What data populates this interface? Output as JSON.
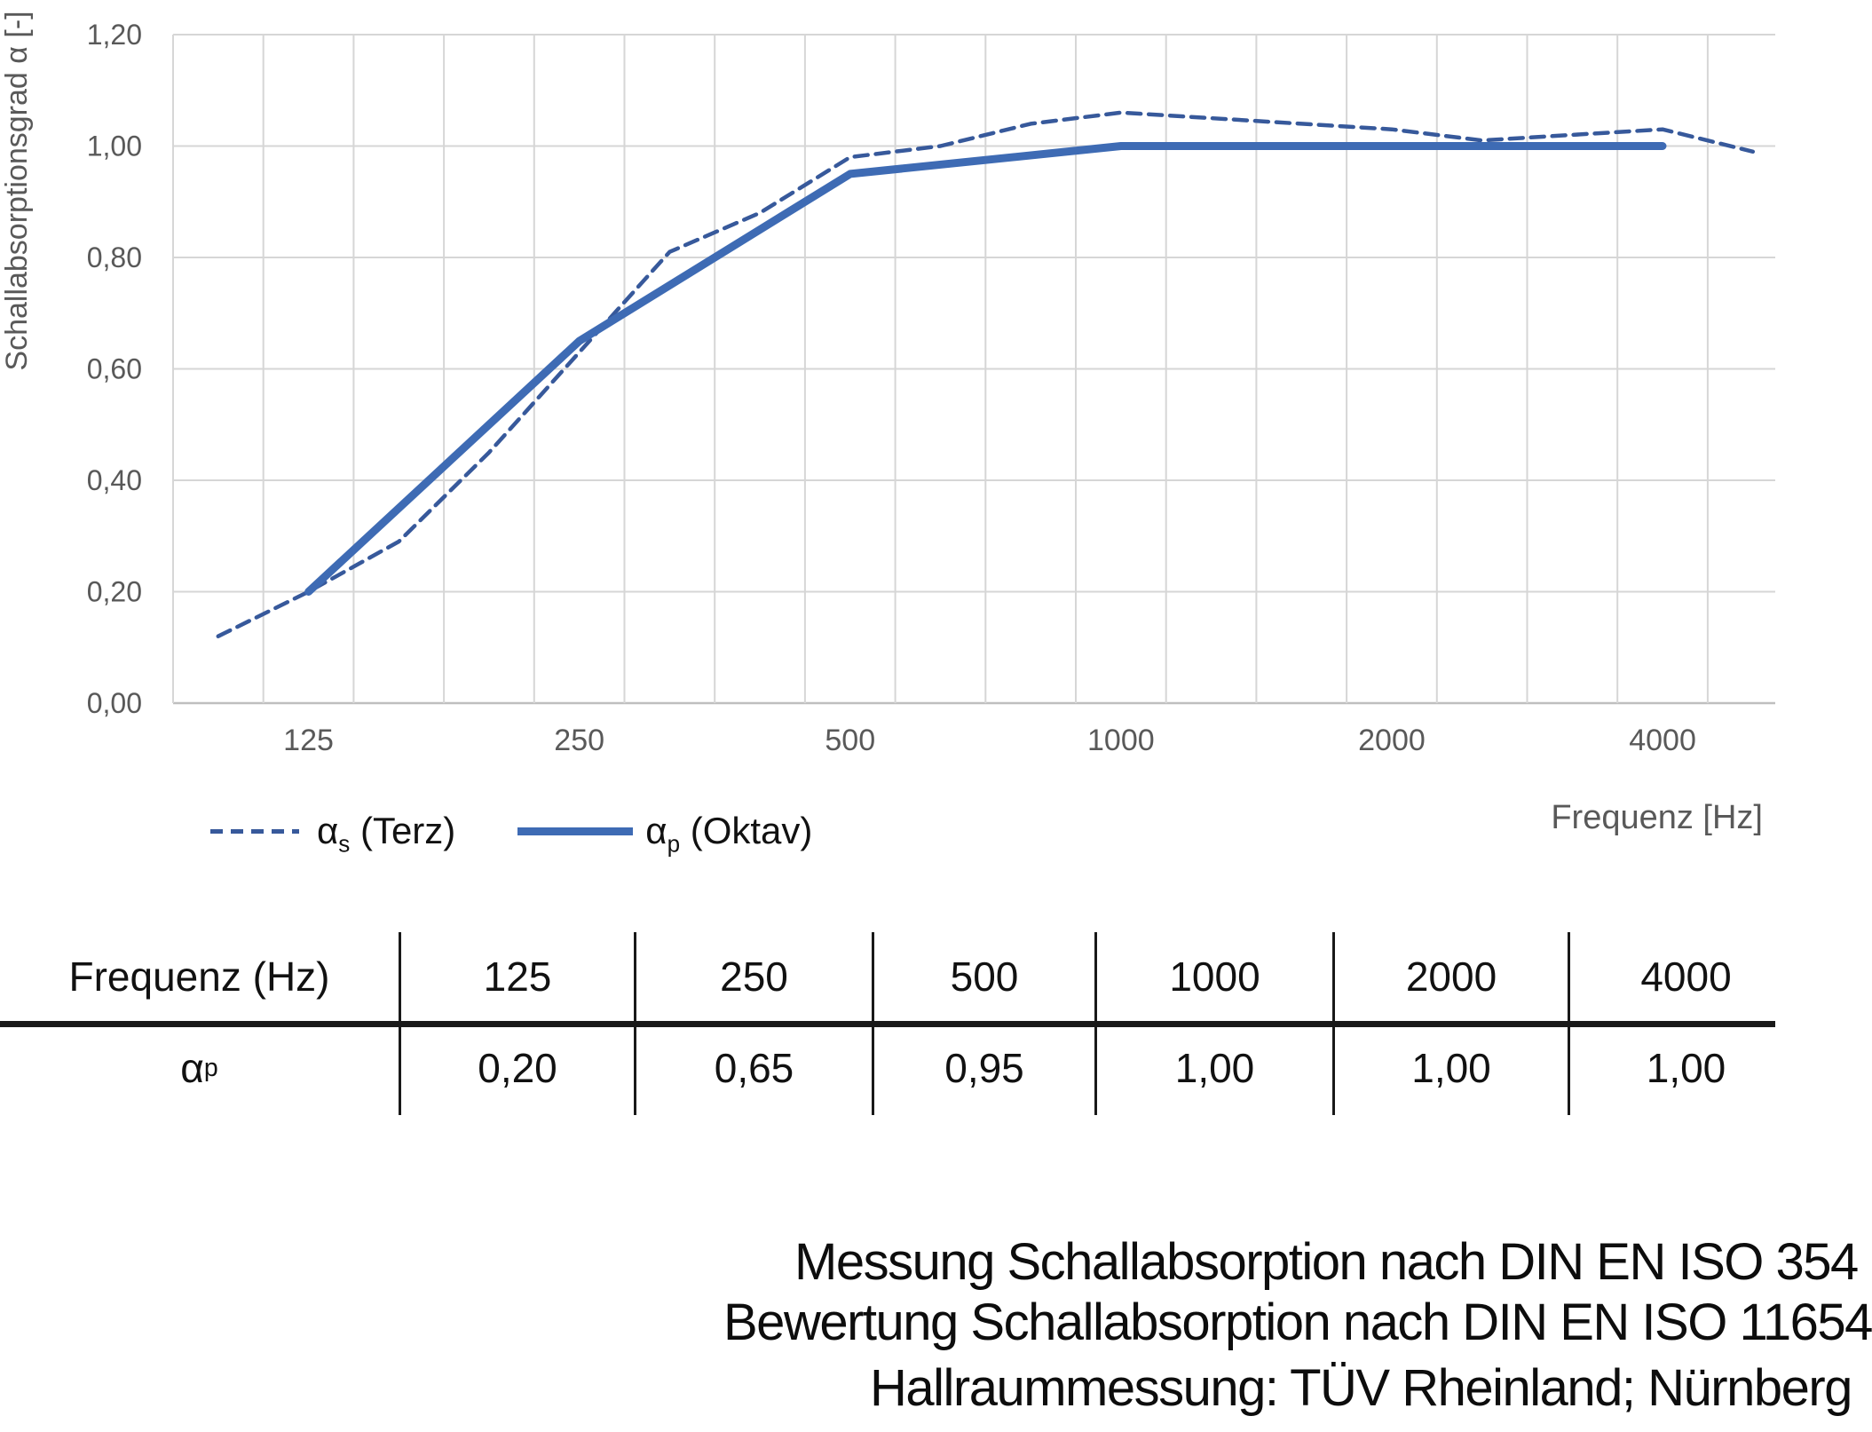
{
  "chart": {
    "y_axis": {
      "title": "Schallabsorptionsgrad α [-]",
      "tick_labels": [
        "1,20",
        "1,00",
        "0,80",
        "0,60",
        "0,40",
        "0,20",
        "0,00"
      ],
      "tick_values": [
        1.2,
        1.0,
        0.8,
        0.6,
        0.4,
        0.2,
        0.0
      ]
    },
    "x_axis": {
      "title": "Frequenz [Hz]",
      "tick_labels": [
        "125",
        "250",
        "500",
        "1000",
        "2000",
        "4000"
      ],
      "tick_freqs": [
        125,
        250,
        500,
        1000,
        2000,
        4000
      ]
    },
    "legend": [
      {
        "symbol": "α",
        "sub": "s",
        "rest": " (Terz)"
      },
      {
        "symbol": "α",
        "sub": "p",
        "rest": " (Oktav)"
      }
    ]
  },
  "chart_data": {
    "type": "line",
    "x_scale": "third-octave-bands",
    "categories": [
      100,
      125,
      160,
      200,
      250,
      315,
      400,
      500,
      630,
      800,
      1000,
      1250,
      1600,
      2000,
      2500,
      3150,
      4000,
      5000
    ],
    "ylim": [
      0,
      1.2
    ],
    "grid": true,
    "legend_position": "bottom-left",
    "xlabel": "Frequenz [Hz]",
    "ylabel": "Schallabsorptionsgrad α [-]",
    "title": "",
    "series": [
      {
        "name": "αs (Terz)",
        "style": "dashed",
        "color": "#37599B",
        "x": [
          100,
          125,
          160,
          200,
          250,
          315,
          400,
          500,
          630,
          800,
          1000,
          1250,
          1600,
          2000,
          2500,
          3150,
          4000,
          5000
        ],
        "values": [
          0.12,
          0.2,
          0.29,
          0.45,
          0.63,
          0.81,
          0.88,
          0.98,
          1.0,
          1.04,
          1.06,
          1.05,
          1.04,
          1.03,
          1.01,
          1.02,
          1.03,
          0.99
        ]
      },
      {
        "name": "αp (Oktav)",
        "style": "solid",
        "color": "#3E6BB4",
        "x": [
          125,
          250,
          500,
          1000,
          2000,
          4000
        ],
        "values": [
          0.2,
          0.65,
          0.95,
          1.0,
          1.0,
          1.0
        ]
      }
    ]
  },
  "table": {
    "header": [
      "Frequenz (Hz)",
      "125",
      "250",
      "500",
      "1000",
      "2000",
      "4000"
    ],
    "row_label": {
      "symbol": "α",
      "sub": "p"
    },
    "values": [
      "0,20",
      "0,65",
      "0,95",
      "1,00",
      "1,00",
      "1,00"
    ]
  },
  "footer": {
    "lines": [
      "Messung Schallabsorption nach DIN EN ISO 354",
      "Bewertung Schallabsorption nach DIN EN ISO 11654",
      "Hallraummessung: TÜV Rheinland; Nürnberg"
    ]
  },
  "colors": {
    "solid_line": "#3E6BB4",
    "dashed_line": "#37599B",
    "grid": "#D6D6D6",
    "axis_line": "#BFBFBF",
    "tick_text": "#595959",
    "table_line": "#191919",
    "text": "#0d0d0d"
  }
}
